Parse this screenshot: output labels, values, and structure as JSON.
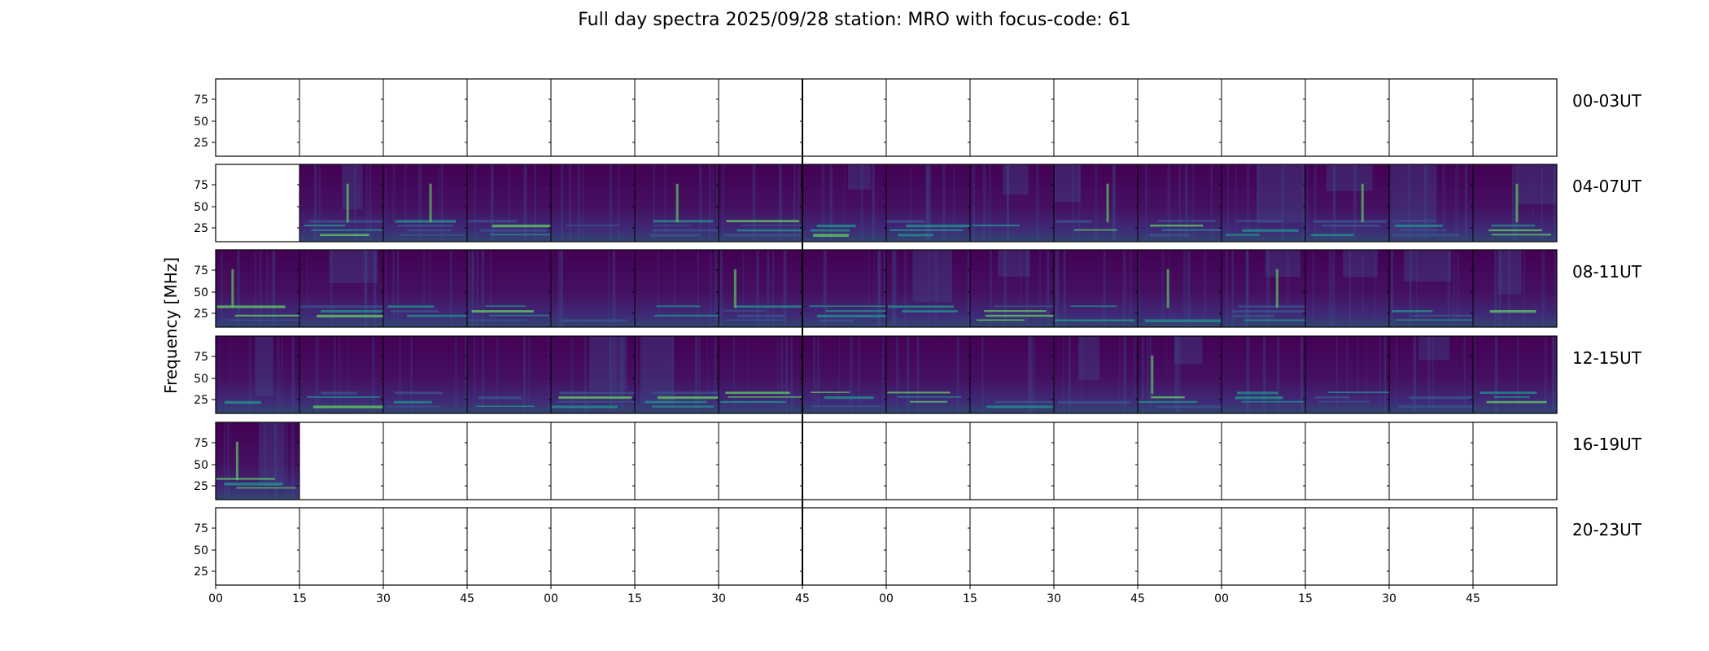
{
  "chart_data": {
    "type": "heatmap",
    "title": "Full day spectra 2025/09/28 station: MRO with focus-code: 61",
    "ylabel": "Frequency [MHz]",
    "xlabel": "",
    "y_ticks": [
      "75",
      "50",
      "25"
    ],
    "x_ticks": [
      "00",
      "15",
      "30",
      "45",
      "00",
      "15",
      "30",
      "45",
      "00",
      "15",
      "30",
      "45",
      "00",
      "15",
      "30",
      "45"
    ],
    "colormap": [
      "#440154",
      "#3b528b",
      "#21918c",
      "#5ec962",
      "#fde725"
    ],
    "rows": [
      {
        "label": "00-03UT",
        "cells": [
          0,
          0,
          0,
          0,
          0,
          0,
          0,
          0,
          0,
          0,
          0,
          0,
          0,
          0,
          0,
          0
        ]
      },
      {
        "label": "04-07UT",
        "cells": [
          0,
          1,
          1,
          1,
          1,
          1,
          1,
          1,
          1,
          1,
          1,
          1,
          1,
          1,
          1,
          1
        ]
      },
      {
        "label": "08-11UT",
        "cells": [
          1,
          1,
          1,
          1,
          1,
          1,
          1,
          1,
          1,
          1,
          1,
          1,
          1,
          1,
          1,
          1
        ]
      },
      {
        "label": "12-15UT",
        "cells": [
          1,
          1,
          1,
          1,
          1,
          1,
          1,
          1,
          1,
          1,
          1,
          1,
          1,
          1,
          1,
          1
        ]
      },
      {
        "label": "16-19UT",
        "cells": [
          1,
          0,
          0,
          0,
          0,
          0,
          0,
          0,
          0,
          0,
          0,
          0,
          0,
          0,
          0,
          0
        ]
      },
      {
        "label": "20-23UT",
        "cells": [
          0,
          0,
          0,
          0,
          0,
          0,
          0,
          0,
          0,
          0,
          0,
          0,
          0,
          0,
          0,
          0
        ]
      }
    ]
  }
}
